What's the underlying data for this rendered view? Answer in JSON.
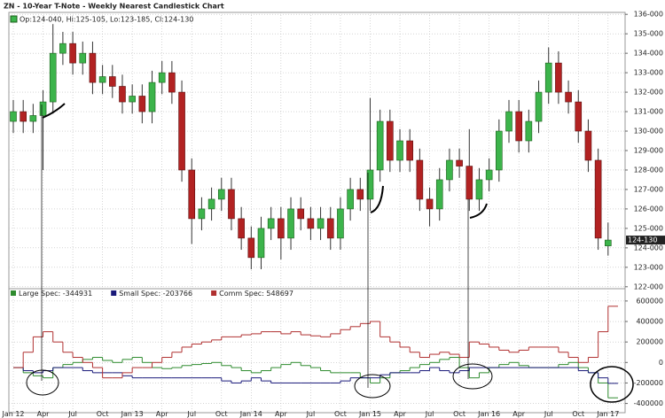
{
  "chart_data": [
    {
      "type": "candlestick",
      "title": "ZN - 10-Year T-Note - Weekly Nearest Candlestick Chart",
      "ohlc_label": "Op:124-040, Hi:125-105, Lo:123-185, Cl:124-130",
      "last_label": "124-130",
      "up_color": "#3cb44b",
      "down_color": "#b22222",
      "grid": true,
      "ylim": [
        121.9,
        136.1
      ],
      "yticks": [
        {
          "value": 122,
          "label": "122-000"
        },
        {
          "value": 123,
          "label": "123-000"
        },
        {
          "value": 124,
          "label": "124-000"
        },
        {
          "value": 125,
          "label": "125-000"
        },
        {
          "value": 126,
          "label": "126-000"
        },
        {
          "value": 127,
          "label": "127-000"
        },
        {
          "value": 128,
          "label": "128-000"
        },
        {
          "value": 129,
          "label": "129-000"
        },
        {
          "value": 130,
          "label": "130-000"
        },
        {
          "value": 131,
          "label": "131-000"
        },
        {
          "value": 132,
          "label": "132-000"
        },
        {
          "value": 133,
          "label": "133-000"
        },
        {
          "value": 134,
          "label": "134-000"
        },
        {
          "value": 135,
          "label": "135-000"
        },
        {
          "value": 136,
          "label": "136-000"
        }
      ],
      "x": [
        "2012-01",
        "2012-02",
        "2012-03",
        "2012-04",
        "2012-05",
        "2012-06",
        "2012-07",
        "2012-08",
        "2012-09",
        "2012-10",
        "2012-11",
        "2012-12",
        "2013-01",
        "2013-02",
        "2013-03",
        "2013-04",
        "2013-05",
        "2013-06",
        "2013-07",
        "2013-08",
        "2013-09",
        "2013-10",
        "2013-11",
        "2013-12",
        "2014-01",
        "2014-02",
        "2014-03",
        "2014-04",
        "2014-05",
        "2014-06",
        "2014-07",
        "2014-08",
        "2014-09",
        "2014-10",
        "2014-11",
        "2014-12",
        "2015-01",
        "2015-02",
        "2015-03",
        "2015-04",
        "2015-05",
        "2015-06",
        "2015-07",
        "2015-08",
        "2015-09",
        "2015-10",
        "2015-11",
        "2015-12",
        "2016-01",
        "2016-02",
        "2016-03",
        "2016-04",
        "2016-05",
        "2016-06",
        "2016-07",
        "2016-08",
        "2016-09",
        "2016-10",
        "2016-11",
        "2016-12",
        "2017-01"
      ],
      "open": [
        130.5,
        131,
        130.5,
        130.8,
        131.5,
        134,
        134.5,
        133.5,
        134,
        132.5,
        132.8,
        132.3,
        131.5,
        131.8,
        131,
        132.5,
        133,
        132,
        128,
        125.5,
        126,
        126.5,
        127,
        125.5,
        124.5,
        123.5,
        125,
        125.5,
        124.5,
        126,
        125.5,
        125,
        125.5,
        124.5,
        126,
        127,
        126.5,
        128,
        130.5,
        128.5,
        129.5,
        128.5,
        126.5,
        126,
        127.5,
        128.5,
        128.2,
        126.5,
        127.5,
        128,
        130,
        131,
        129.5,
        130.5,
        132,
        133.5,
        132,
        131.5,
        130,
        128.5,
        124.1
      ],
      "high": [
        131.6,
        131.6,
        131.4,
        132.1,
        135.5,
        135.1,
        135.1,
        134.6,
        134.6,
        133.4,
        133.4,
        132.9,
        132.4,
        132.4,
        133.1,
        133.6,
        133.6,
        132.6,
        128.6,
        126.6,
        127.1,
        127.6,
        127.6,
        126.1,
        125.1,
        125.6,
        126.1,
        126.1,
        126.6,
        126.6,
        126.1,
        126.1,
        126.1,
        126.6,
        127.6,
        127.6,
        131.7,
        131.1,
        131.1,
        130.1,
        130.1,
        129.1,
        127.1,
        128.1,
        129.1,
        129.1,
        130.1,
        128.1,
        128.6,
        130.6,
        131.6,
        131.6,
        131.1,
        132.6,
        134.3,
        134.1,
        132.6,
        132.1,
        130.6,
        129.1,
        125.3
      ],
      "low": [
        129.9,
        129.9,
        129.9,
        128,
        130.9,
        133.4,
        132.9,
        132.9,
        131.9,
        131.9,
        131.7,
        130.9,
        130.9,
        130.4,
        130.4,
        131.9,
        131.4,
        127.4,
        124.2,
        124.9,
        125.4,
        125.9,
        124.9,
        123.9,
        122.9,
        122.9,
        124.4,
        123.4,
        123.9,
        124.9,
        124.4,
        124.4,
        123.9,
        123.9,
        125.4,
        125.9,
        125.9,
        127.4,
        127.9,
        127.9,
        127.9,
        125.9,
        125.1,
        125.4,
        126.9,
        127.6,
        125.9,
        125.9,
        126.9,
        127.4,
        129.4,
        128.9,
        128.9,
        129.9,
        131.4,
        131.4,
        130.9,
        129.4,
        127.9,
        123.9,
        123.6
      ],
      "close": [
        131,
        130.5,
        130.8,
        131.5,
        134,
        134.5,
        133.5,
        134,
        132.5,
        132.8,
        132.3,
        131.5,
        131.8,
        131,
        132.5,
        133,
        132,
        128,
        125.5,
        126,
        126.5,
        127,
        125.5,
        124.5,
        123.5,
        125,
        125.5,
        124.5,
        126,
        125.5,
        125,
        125.5,
        124.5,
        126,
        127,
        126.5,
        128,
        130.5,
        128.5,
        129.5,
        128.5,
        126.5,
        126,
        127.5,
        128.5,
        128.2,
        126.5,
        127.5,
        128,
        130,
        131,
        129.5,
        130.5,
        132,
        133.5,
        132,
        131.5,
        130,
        128.5,
        124.5,
        124.4
      ]
    },
    {
      "type": "step",
      "grid": true,
      "ylim": [
        -490000,
        720000
      ],
      "yticks": [
        -400000,
        -200000,
        0,
        200000,
        400000,
        600000
      ],
      "xticks": [
        {
          "value": "2012-01",
          "label": "Jan 12"
        },
        {
          "value": "2012-04",
          "label": "Apr"
        },
        {
          "value": "2012-07",
          "label": "Jul"
        },
        {
          "value": "2012-10",
          "label": "Oct"
        },
        {
          "value": "2013-01",
          "label": "Jan 13"
        },
        {
          "value": "2013-04",
          "label": "Apr"
        },
        {
          "value": "2013-07",
          "label": "Jul"
        },
        {
          "value": "2013-10",
          "label": "Oct"
        },
        {
          "value": "2014-01",
          "label": "Jan 14"
        },
        {
          "value": "2014-04",
          "label": "Apr"
        },
        {
          "value": "2014-07",
          "label": "Jul"
        },
        {
          "value": "2014-10",
          "label": "Oct"
        },
        {
          "value": "2015-01",
          "label": "Jan 15"
        },
        {
          "value": "2015-04",
          "label": "Apr"
        },
        {
          "value": "2015-07",
          "label": "Jul"
        },
        {
          "value": "2015-10",
          "label": "Oct"
        },
        {
          "value": "2016-01",
          "label": "Jan 16"
        },
        {
          "value": "2016-04",
          "label": "Apr"
        },
        {
          "value": "2016-07",
          "label": "Jul"
        },
        {
          "value": "2016-10",
          "label": "Oct"
        },
        {
          "value": "2017-01",
          "label": "Jan 17"
        }
      ],
      "x": [
        "2012-01",
        "2012-02",
        "2012-03",
        "2012-04",
        "2012-05",
        "2012-06",
        "2012-07",
        "2012-08",
        "2012-09",
        "2012-10",
        "2012-11",
        "2012-12",
        "2013-01",
        "2013-02",
        "2013-03",
        "2013-04",
        "2013-05",
        "2013-06",
        "2013-07",
        "2013-08",
        "2013-09",
        "2013-10",
        "2013-11",
        "2013-12",
        "2014-01",
        "2014-02",
        "2014-03",
        "2014-04",
        "2014-05",
        "2014-06",
        "2014-07",
        "2014-08",
        "2014-09",
        "2014-10",
        "2014-11",
        "2014-12",
        "2015-01",
        "2015-02",
        "2015-03",
        "2015-04",
        "2015-05",
        "2015-06",
        "2015-07",
        "2015-08",
        "2015-09",
        "2015-10",
        "2015-11",
        "2015-12",
        "2016-01",
        "2016-02",
        "2016-03",
        "2016-04",
        "2016-05",
        "2016-06",
        "2016-07",
        "2016-08",
        "2016-09",
        "2016-10",
        "2016-11",
        "2016-12",
        "2017-01"
      ],
      "series": [
        {
          "name": "Large Spec: -344931",
          "color": "#2e8b2e",
          "values": [
            -50000,
            -100000,
            -130000,
            -150000,
            -50000,
            -20000,
            0,
            30000,
            50000,
            20000,
            0,
            30000,
            50000,
            0,
            -50000,
            -60000,
            -50000,
            -30000,
            -20000,
            -10000,
            0,
            -30000,
            -50000,
            -80000,
            -100000,
            -80000,
            -50000,
            -20000,
            0,
            -30000,
            -50000,
            -80000,
            -100000,
            -100000,
            -100000,
            -150000,
            -200000,
            -150000,
            -100000,
            -80000,
            -50000,
            -20000,
            0,
            30000,
            50000,
            -50000,
            -150000,
            -100000,
            -50000,
            -20000,
            0,
            -30000,
            -50000,
            -50000,
            -50000,
            -20000,
            0,
            -50000,
            -100000,
            -200000,
            -344931
          ]
        },
        {
          "name": "Small Spec: -203766",
          "color": "#1a1a7a",
          "values": [
            -50000,
            -80000,
            -100000,
            -80000,
            -50000,
            -50000,
            -50000,
            -80000,
            -100000,
            -100000,
            -100000,
            -130000,
            -150000,
            -150000,
            -150000,
            -150000,
            -150000,
            -150000,
            -150000,
            -150000,
            -150000,
            -180000,
            -200000,
            -180000,
            -150000,
            -180000,
            -200000,
            -200000,
            -200000,
            -200000,
            -200000,
            -200000,
            -200000,
            -180000,
            -150000,
            -150000,
            -150000,
            -120000,
            -100000,
            -100000,
            -100000,
            -80000,
            -50000,
            -80000,
            -100000,
            -80000,
            -50000,
            -50000,
            -50000,
            -50000,
            -50000,
            -50000,
            -50000,
            -50000,
            -50000,
            -50000,
            -50000,
            -80000,
            -100000,
            -150000,
            -203766
          ]
        },
        {
          "name": "Comm Spec: 548697",
          "color": "#b03030",
          "values": [
            -50000,
            100000,
            250000,
            300000,
            200000,
            100000,
            50000,
            0,
            -50000,
            -150000,
            -150000,
            -100000,
            -50000,
            -50000,
            0,
            50000,
            100000,
            150000,
            180000,
            200000,
            220000,
            250000,
            250000,
            270000,
            280000,
            300000,
            300000,
            280000,
            300000,
            270000,
            260000,
            250000,
            280000,
            320000,
            350000,
            380000,
            400000,
            250000,
            200000,
            150000,
            100000,
            50000,
            80000,
            100000,
            80000,
            50000,
            200000,
            180000,
            150000,
            120000,
            100000,
            120000,
            150000,
            150000,
            150000,
            100000,
            50000,
            0,
            50000,
            300000,
            548697
          ]
        }
      ]
    }
  ]
}
